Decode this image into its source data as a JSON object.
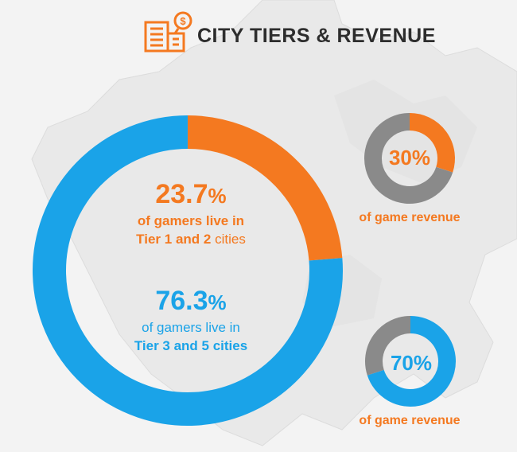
{
  "header": {
    "title": "CITY TIERS & REVENUE",
    "icon": "city-building-dollar-icon"
  },
  "colors": {
    "orange": "#f47920",
    "blue": "#1aa3e8",
    "gray": "#8a8a8a",
    "dark": "#2d2d2d"
  },
  "main": {
    "tier12": {
      "value": "23.7",
      "unit": "%",
      "line1": "of gamers live in",
      "line2_bold": "Tier 1 and 2",
      "line2_rest": " cities"
    },
    "tier35": {
      "value": "76.3",
      "unit": "%",
      "line1": "of gamers live in",
      "line2": "Tier 3 and 5 cities"
    }
  },
  "revenue": [
    {
      "label": "30%",
      "caption": "of game revenue"
    },
    {
      "label": "70%",
      "caption": "of game revenue"
    }
  ],
  "chart_data": [
    {
      "type": "pie",
      "slices": [
        {
          "label": "Tier 1 and 2 cities",
          "value": 23.7,
          "color": "#f47920"
        },
        {
          "label": "Tier 3 and 5 cities",
          "value": 76.3,
          "color": "#1aa3e8"
        }
      ]
    },
    {
      "type": "pie",
      "slices": [
        {
          "label": "of game revenue",
          "value": 30,
          "color": "#f47920"
        },
        {
          "label": "",
          "value": 70,
          "color": "#8a8a8a"
        }
      ]
    },
    {
      "type": "pie",
      "slices": [
        {
          "label": "of game revenue",
          "value": 70,
          "color": "#1aa3e8"
        },
        {
          "label": "",
          "value": 30,
          "color": "#8a8a8a"
        }
      ]
    }
  ]
}
